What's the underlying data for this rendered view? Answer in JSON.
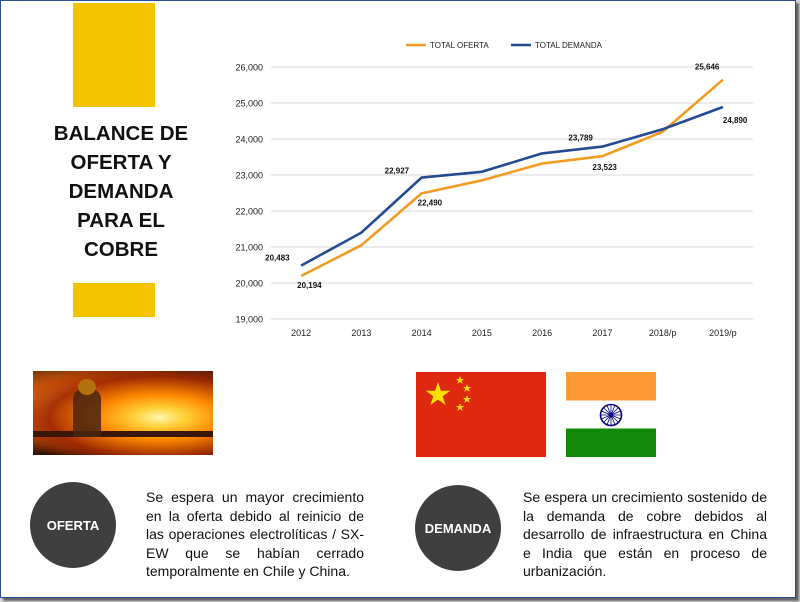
{
  "title": "BALANCE DE OFERTA Y DEMANDA PARA EL COBRE",
  "colors": {
    "accent_yellow": "#f5c300",
    "oferta": "#f39a21",
    "demanda": "#244a8f",
    "circle": "#3f3f3f"
  },
  "chart_data": {
    "type": "line",
    "categories": [
      "2012",
      "2013",
      "2014",
      "2015",
      "2016",
      "2017",
      "2018/p",
      "2019/p"
    ],
    "series": [
      {
        "name": "TOTAL OFERTA",
        "color": "#f39a21",
        "values": [
          20194,
          21050,
          22490,
          22850,
          23320,
          23523,
          24200,
          25646
        ]
      },
      {
        "name": "TOTAL DEMANDA",
        "color": "#244a8f",
        "values": [
          20483,
          21400,
          22927,
          23090,
          23600,
          23789,
          24270,
          24890
        ]
      }
    ],
    "yticks": [
      "19,000",
      "20,000",
      "21,000",
      "22,000",
      "23,000",
      "24,000",
      "25,000",
      "26,000"
    ],
    "ylim": [
      19000,
      26000
    ],
    "grid": true,
    "legend_position": "top",
    "data_labels": [
      {
        "series": 1,
        "index": 0,
        "text": "20,483"
      },
      {
        "series": 0,
        "index": 0,
        "text": "20,194"
      },
      {
        "series": 1,
        "index": 2,
        "text": "22,927"
      },
      {
        "series": 0,
        "index": 2,
        "text": "22,490"
      },
      {
        "series": 1,
        "index": 5,
        "text": "23,789"
      },
      {
        "series": 0,
        "index": 5,
        "text": "23,523"
      },
      {
        "series": 0,
        "index": 7,
        "text": "25,646"
      },
      {
        "series": 1,
        "index": 7,
        "text": "24,890"
      }
    ]
  },
  "oferta": {
    "label": "OFERTA",
    "text": "Se espera un mayor crecimiento en la oferta debido al reinicio de las operaciones electrolíticas / SX-EW que se habían cerrado temporalmente en Chile y China."
  },
  "demanda": {
    "label": "DEMANDA",
    "text": "Se espera un crecimiento sostenido de la demanda de cobre debidos al desarrollo de infraestructura en China e India que están en proceso de urbanización."
  }
}
